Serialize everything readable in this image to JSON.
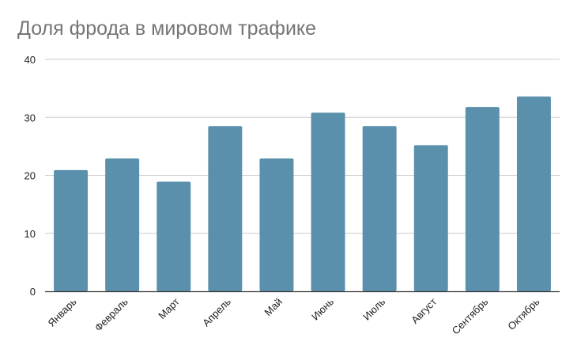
{
  "chart_data": {
    "type": "bar",
    "title": "Доля фрода в мировом трафике",
    "xlabel": "",
    "ylabel": "",
    "categories": [
      "Январь",
      "Февраль",
      "Март",
      "Апрель",
      "Май",
      "Июнь",
      "Июль",
      "Август",
      "Сентябрь",
      "Октябрь"
    ],
    "values": [
      20.9,
      22.9,
      18.9,
      28.5,
      22.9,
      30.8,
      28.5,
      25.2,
      31.8,
      33.6
    ],
    "ylim": [
      0,
      40
    ],
    "yticks": [
      "0",
      "10",
      "20",
      "30",
      "40"
    ],
    "grid": true,
    "legend": "none",
    "colors": {
      "bar": "#5b90ac",
      "grid": "#cccccc",
      "axis": "#333333",
      "title": "#757575"
    }
  }
}
